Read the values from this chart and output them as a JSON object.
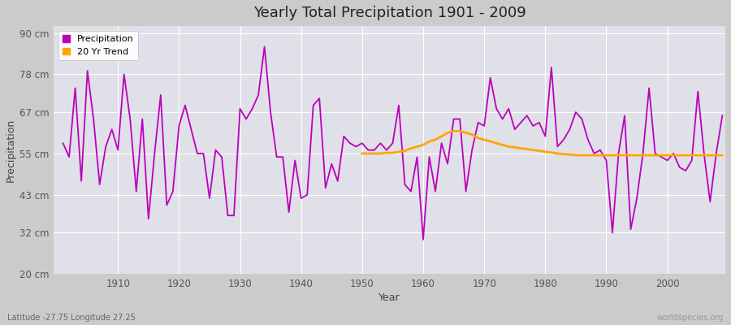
{
  "title": "Yearly Total Precipitation 1901 - 2009",
  "xlabel": "Year",
  "ylabel": "Precipitation",
  "lat_lon_label": "Latitude -27.75 Longitude 27.25",
  "source_label": "worldspecies.org",
  "ylim": [
    20,
    92
  ],
  "yticks": [
    20,
    32,
    43,
    55,
    67,
    78,
    90
  ],
  "ytick_labels": [
    "20 cm",
    "32 cm",
    "43 cm",
    "55 cm",
    "67 cm",
    "78 cm",
    "90 cm"
  ],
  "xlim": [
    1899.5,
    2009.5
  ],
  "xticks": [
    1910,
    1920,
    1930,
    1940,
    1950,
    1960,
    1970,
    1980,
    1990,
    2000
  ],
  "precip_color": "#BB00BB",
  "trend_color": "#FFA500",
  "fig_bg_color": "#CBCBCB",
  "plot_bg_color": "#E0E0E8",
  "grid_color": "#FFFFFF",
  "precipitation": [
    58,
    54,
    74,
    47,
    79,
    65,
    46,
    57,
    62,
    56,
    78,
    65,
    44,
    65,
    36,
    55,
    72,
    40,
    44,
    63,
    69,
    62,
    55,
    55,
    42,
    56,
    54,
    37,
    37,
    68,
    65,
    68,
    72,
    86,
    67,
    54,
    54,
    38,
    53,
    42,
    43,
    69,
    71,
    45,
    52,
    47,
    60,
    58,
    57,
    58,
    56,
    56,
    58,
    56,
    58,
    69,
    46,
    44,
    54,
    30,
    54,
    44,
    58,
    52,
    65,
    65,
    44,
    56,
    64,
    63,
    77,
    68,
    65,
    68,
    62,
    64,
    66,
    63,
    64,
    60,
    80,
    57,
    59,
    62,
    67,
    65,
    59,
    55,
    56,
    53,
    32,
    55,
    66,
    33,
    42,
    55,
    74,
    55,
    54,
    53,
    55,
    51,
    50,
    53,
    73,
    55,
    41,
    55,
    66
  ],
  "trend_start_year": 1950,
  "trend": [
    55.0,
    55.0,
    55.0,
    55.0,
    55.2,
    55.2,
    55.5,
    55.8,
    56.5,
    57.0,
    57.5,
    58.5,
    59.0,
    60.0,
    61.0,
    61.5,
    61.5,
    61.0,
    60.5,
    59.5,
    59.0,
    58.5,
    58.0,
    57.5,
    57.0,
    56.8,
    56.5,
    56.3,
    56.0,
    55.8,
    55.5,
    55.3,
    55.0,
    54.8,
    54.7,
    54.5,
    54.5,
    54.5,
    54.5,
    54.5,
    54.5,
    54.5,
    54.5,
    54.5,
    54.5,
    54.5,
    54.5,
    54.5,
    54.5,
    54.5,
    54.5,
    54.5,
    54.5,
    54.5,
    54.5,
    54.5,
    54.5,
    54.5,
    54.5,
    54.5
  ],
  "legend_precip_label": "Precipitation",
  "legend_trend_label": "20 Yr Trend"
}
